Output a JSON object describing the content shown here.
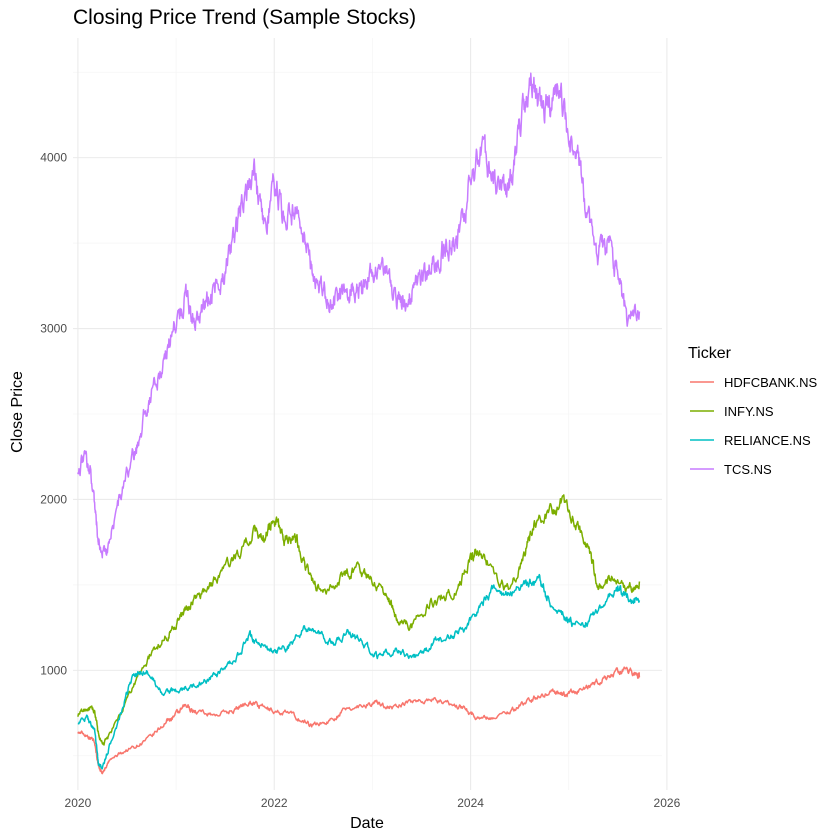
{
  "chart_data": {
    "type": "line",
    "title": "Closing Price Trend (Sample Stocks)",
    "xlabel": "Date",
    "ylabel": "Close Price",
    "xlim": [
      2019.95,
      2025.95
    ],
    "ylim": [
      300,
      4700
    ],
    "x_ticks": [
      2020,
      2022,
      2024,
      2026
    ],
    "x_tick_labels": [
      "2020",
      "2022",
      "2024",
      "2026"
    ],
    "y_ticks": [
      1000,
      2000,
      3000,
      4000
    ],
    "y_tick_labels": [
      "1000",
      "2000",
      "3000",
      "4000"
    ],
    "grid": true,
    "legend": {
      "title": "Ticker",
      "position": "right"
    },
    "series": [
      {
        "name": "HDFCBANK.NS",
        "color": "#F8766D",
        "points": [
          [
            2020.0,
            640
          ],
          [
            2020.1,
            620
          ],
          [
            2020.17,
            590
          ],
          [
            2020.21,
            430
          ],
          [
            2020.25,
            400
          ],
          [
            2020.32,
            470
          ],
          [
            2020.45,
            520
          ],
          [
            2020.6,
            560
          ],
          [
            2020.75,
            610
          ],
          [
            2020.9,
            700
          ],
          [
            2021.0,
            740
          ],
          [
            2021.1,
            790
          ],
          [
            2021.2,
            760
          ],
          [
            2021.4,
            740
          ],
          [
            2021.6,
            770
          ],
          [
            2021.75,
            820
          ],
          [
            2021.85,
            790
          ],
          [
            2022.0,
            760
          ],
          [
            2022.15,
            750
          ],
          [
            2022.3,
            700
          ],
          [
            2022.4,
            680
          ],
          [
            2022.55,
            700
          ],
          [
            2022.7,
            760
          ],
          [
            2022.9,
            800
          ],
          [
            2023.05,
            810
          ],
          [
            2023.2,
            780
          ],
          [
            2023.4,
            820
          ],
          [
            2023.6,
            830
          ],
          [
            2023.8,
            800
          ],
          [
            2023.95,
            780
          ],
          [
            2024.05,
            730
          ],
          [
            2024.2,
            720
          ],
          [
            2024.4,
            760
          ],
          [
            2024.55,
            810
          ],
          [
            2024.7,
            850
          ],
          [
            2024.85,
            880
          ],
          [
            2024.95,
            850
          ],
          [
            2025.05,
            870
          ],
          [
            2025.2,
            900
          ],
          [
            2025.35,
            950
          ],
          [
            2025.5,
            990
          ],
          [
            2025.6,
            1000
          ],
          [
            2025.7,
            980
          ],
          [
            2025.72,
            960
          ]
        ]
      },
      {
        "name": "INFY.NS",
        "color": "#7CAE00",
        "points": [
          [
            2020.0,
            740
          ],
          [
            2020.1,
            780
          ],
          [
            2020.17,
            760
          ],
          [
            2020.21,
            620
          ],
          [
            2020.25,
            560
          ],
          [
            2020.32,
            620
          ],
          [
            2020.45,
            760
          ],
          [
            2020.6,
            950
          ],
          [
            2020.75,
            1100
          ],
          [
            2020.9,
            1200
          ],
          [
            2021.0,
            1280
          ],
          [
            2021.1,
            1350
          ],
          [
            2021.2,
            1420
          ],
          [
            2021.35,
            1500
          ],
          [
            2021.5,
            1600
          ],
          [
            2021.65,
            1700
          ],
          [
            2021.8,
            1820
          ],
          [
            2021.9,
            1780
          ],
          [
            2022.0,
            1900
          ],
          [
            2022.1,
            1760
          ],
          [
            2022.2,
            1800
          ],
          [
            2022.3,
            1650
          ],
          [
            2022.4,
            1500
          ],
          [
            2022.55,
            1450
          ],
          [
            2022.7,
            1560
          ],
          [
            2022.85,
            1600
          ],
          [
            2023.0,
            1520
          ],
          [
            2023.15,
            1450
          ],
          [
            2023.25,
            1300
          ],
          [
            2023.4,
            1260
          ],
          [
            2023.55,
            1380
          ],
          [
            2023.7,
            1430
          ],
          [
            2023.85,
            1460
          ],
          [
            2024.0,
            1650
          ],
          [
            2024.1,
            1700
          ],
          [
            2024.25,
            1560
          ],
          [
            2024.4,
            1460
          ],
          [
            2024.55,
            1680
          ],
          [
            2024.65,
            1850
          ],
          [
            2024.8,
            1920
          ],
          [
            2024.92,
            1980
          ],
          [
            2025.05,
            1900
          ],
          [
            2025.2,
            1720
          ],
          [
            2025.3,
            1480
          ],
          [
            2025.45,
            1550
          ],
          [
            2025.6,
            1460
          ],
          [
            2025.72,
            1520
          ]
        ]
      },
      {
        "name": "RELIANCE.NS",
        "color": "#00BFC4",
        "points": [
          [
            2020.0,
            700
          ],
          [
            2020.1,
            720
          ],
          [
            2020.17,
            650
          ],
          [
            2020.21,
            450
          ],
          [
            2020.25,
            430
          ],
          [
            2020.32,
            550
          ],
          [
            2020.45,
            760
          ],
          [
            2020.55,
            960
          ],
          [
            2020.7,
            1000
          ],
          [
            2020.85,
            870
          ],
          [
            2021.0,
            880
          ],
          [
            2021.15,
            900
          ],
          [
            2021.3,
            940
          ],
          [
            2021.45,
            980
          ],
          [
            2021.6,
            1060
          ],
          [
            2021.75,
            1200
          ],
          [
            2021.85,
            1160
          ],
          [
            2022.0,
            1100
          ],
          [
            2022.15,
            1140
          ],
          [
            2022.3,
            1250
          ],
          [
            2022.45,
            1210
          ],
          [
            2022.6,
            1150
          ],
          [
            2022.75,
            1230
          ],
          [
            2022.9,
            1160
          ],
          [
            2023.05,
            1080
          ],
          [
            2023.2,
            1120
          ],
          [
            2023.35,
            1100
          ],
          [
            2023.5,
            1080
          ],
          [
            2023.65,
            1180
          ],
          [
            2023.8,
            1200
          ],
          [
            2023.95,
            1250
          ],
          [
            2024.1,
            1380
          ],
          [
            2024.25,
            1480
          ],
          [
            2024.4,
            1460
          ],
          [
            2024.55,
            1500
          ],
          [
            2024.7,
            1520
          ],
          [
            2024.8,
            1400
          ],
          [
            2024.95,
            1320
          ],
          [
            2025.05,
            1270
          ],
          [
            2025.2,
            1280
          ],
          [
            2025.35,
            1400
          ],
          [
            2025.5,
            1480
          ],
          [
            2025.6,
            1430
          ],
          [
            2025.72,
            1410
          ]
        ]
      },
      {
        "name": "TCS.NS",
        "color": "#C77CFF",
        "points": [
          [
            2020.0,
            2180
          ],
          [
            2020.08,
            2240
          ],
          [
            2020.15,
            2100
          ],
          [
            2020.2,
            1800
          ],
          [
            2020.24,
            1680
          ],
          [
            2020.3,
            1720
          ],
          [
            2020.4,
            1950
          ],
          [
            2020.5,
            2150
          ],
          [
            2020.6,
            2300
          ],
          [
            2020.7,
            2550
          ],
          [
            2020.8,
            2700
          ],
          [
            2020.9,
            2850
          ],
          [
            2021.0,
            3050
          ],
          [
            2021.1,
            3200
          ],
          [
            2021.2,
            3050
          ],
          [
            2021.3,
            3150
          ],
          [
            2021.4,
            3250
          ],
          [
            2021.5,
            3300
          ],
          [
            2021.6,
            3550
          ],
          [
            2021.7,
            3800
          ],
          [
            2021.8,
            3900
          ],
          [
            2021.9,
            3550
          ],
          [
            2022.0,
            3850
          ],
          [
            2022.1,
            3650
          ],
          [
            2022.2,
            3700
          ],
          [
            2022.3,
            3500
          ],
          [
            2022.4,
            3300
          ],
          [
            2022.5,
            3200
          ],
          [
            2022.6,
            3150
          ],
          [
            2022.7,
            3200
          ],
          [
            2022.8,
            3250
          ],
          [
            2022.9,
            3200
          ],
          [
            2023.0,
            3350
          ],
          [
            2023.1,
            3400
          ],
          [
            2023.2,
            3200
          ],
          [
            2023.3,
            3150
          ],
          [
            2023.4,
            3250
          ],
          [
            2023.5,
            3300
          ],
          [
            2023.6,
            3350
          ],
          [
            2023.7,
            3450
          ],
          [
            2023.8,
            3500
          ],
          [
            2023.9,
            3550
          ],
          [
            2024.0,
            3850
          ],
          [
            2024.1,
            4050
          ],
          [
            2024.2,
            3950
          ],
          [
            2024.3,
            3800
          ],
          [
            2024.4,
            3850
          ],
          [
            2024.5,
            4150
          ],
          [
            2024.6,
            4480
          ],
          [
            2024.7,
            4350
          ],
          [
            2024.8,
            4300
          ],
          [
            2024.9,
            4400
          ],
          [
            2025.0,
            4100
          ],
          [
            2025.1,
            4000
          ],
          [
            2025.2,
            3600
          ],
          [
            2025.3,
            3450
          ],
          [
            2025.4,
            3500
          ],
          [
            2025.5,
            3300
          ],
          [
            2025.6,
            3050
          ],
          [
            2025.72,
            3100
          ]
        ]
      }
    ]
  }
}
